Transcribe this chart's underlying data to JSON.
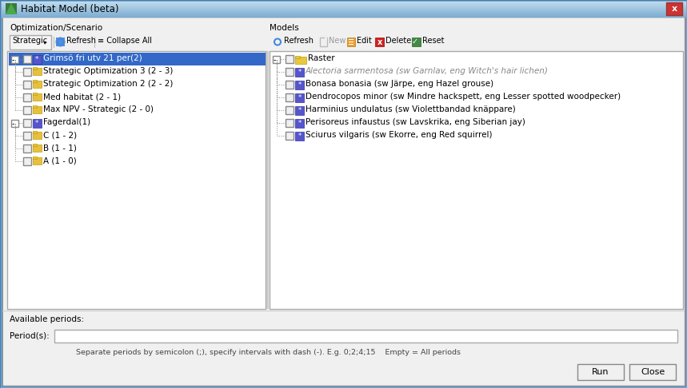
{
  "title": "Habitat Model (beta)",
  "bg_color": "#ece9d8",
  "dialog_bg": "#f0f0f0",
  "titlebar_grad_top": "#c5dff0",
  "titlebar_grad_bot": "#87b5d4",
  "left_panel_label": "Optimization/Scenario",
  "right_panel_label": "Models",
  "left_tree": [
    {
      "label": "Grimsö fri utv 21 per(2)",
      "level": 0,
      "selected": true
    },
    {
      "label": "Strategic Optimization 3 (2 - 3)",
      "level": 1,
      "selected": false
    },
    {
      "label": "Strategic Optimization 2 (2 - 2)",
      "level": 1,
      "selected": false
    },
    {
      "label": "Med habitat (2 - 1)",
      "level": 1,
      "selected": false
    },
    {
      "label": "Max NPV - Strategic (2 - 0)",
      "level": 1,
      "selected": false
    },
    {
      "label": "Fagerdal(1)",
      "level": 0,
      "selected": false
    },
    {
      "label": "C (1 - 2)",
      "level": 1,
      "selected": false
    },
    {
      "label": "B (1 - 1)",
      "level": 1,
      "selected": false
    },
    {
      "label": "A (1 - 0)",
      "level": 1,
      "selected": false
    }
  ],
  "right_tree": [
    {
      "label": "Raster",
      "level": 0,
      "italic": false
    },
    {
      "label": "Alectoria sarmentosa (sw Garnlav, eng Witch's hair lichen)",
      "level": 1,
      "italic": true
    },
    {
      "label": "Bonasa bonasia (sw Järpe, eng Hazel grouse)",
      "level": 1,
      "italic": false
    },
    {
      "label": "Dendrocopos minor (sw Mindre hackspett, eng Lesser spotted woodpecker)",
      "level": 1,
      "italic": false
    },
    {
      "label": "Harminius undulatus (sw Violettbandad knäppare)",
      "level": 1,
      "italic": false
    },
    {
      "label": "Perisoreus infaustus (sw Lavskrika, eng Siberian jay)",
      "level": 1,
      "italic": false
    },
    {
      "label": "Sciurus vilgaris (sw Ekorre, eng Red squirrel)",
      "level": 1,
      "italic": false
    }
  ],
  "bottom_label1": "Available periods:",
  "bottom_label2": "Period(s):",
  "bottom_hint": "Separate periods by semicolon (;), specify intervals with dash (-). E.g. 0;2;4;15    Empty = All periods",
  "btn_run": "Run",
  "btn_close": "Close"
}
